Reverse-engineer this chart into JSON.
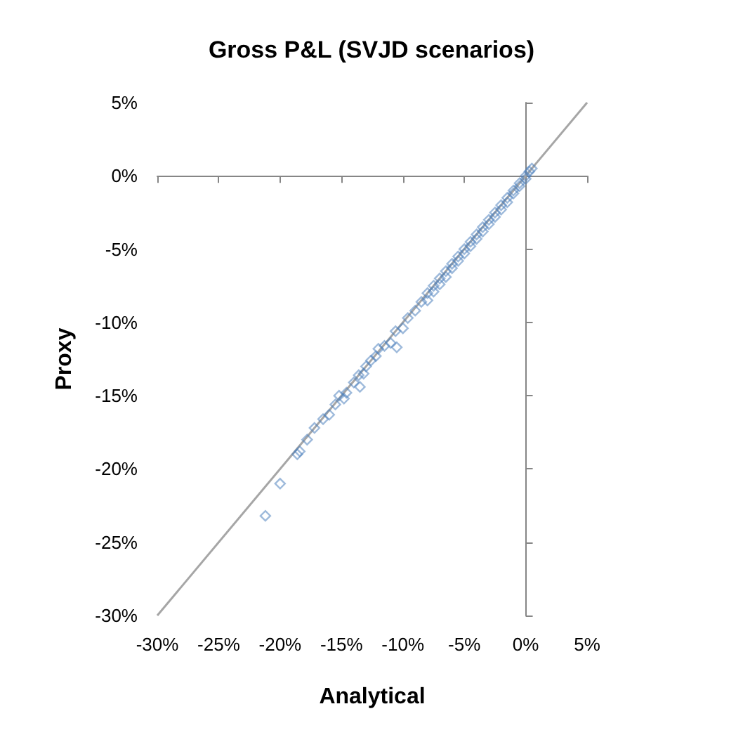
{
  "chart_data": {
    "type": "scatter",
    "title": "Gross P&L (SVJD scenarios)",
    "xlabel": "Analytical",
    "ylabel": "Proxy",
    "marker": "diamond",
    "xlim": [
      -30,
      5
    ],
    "ylim": [
      -30,
      5
    ],
    "xticks": [
      {
        "value": -30,
        "label": "-30%"
      },
      {
        "value": -25,
        "label": "-25%"
      },
      {
        "value": -20,
        "label": "-20%"
      },
      {
        "value": -15,
        "label": "-15%"
      },
      {
        "value": -10,
        "label": "-10%"
      },
      {
        "value": -5,
        "label": "-5%"
      },
      {
        "value": 0,
        "label": "0%"
      },
      {
        "value": 5,
        "label": "5%"
      }
    ],
    "yticks": [
      {
        "value": -30,
        "label": "-30%"
      },
      {
        "value": -25,
        "label": "-25%"
      },
      {
        "value": -20,
        "label": "-20%"
      },
      {
        "value": -15,
        "label": "-15%"
      },
      {
        "value": -10,
        "label": "-10%"
      },
      {
        "value": -5,
        "label": "-5%"
      },
      {
        "value": 0,
        "label": "0%"
      },
      {
        "value": 5,
        "label": "5%"
      }
    ],
    "series": [
      {
        "color": "#4f81bd",
        "x": [
          -21.2,
          -20.0,
          -18.6,
          -18.4,
          -17.8,
          -17.2,
          -16.5,
          -16.0,
          -15.5,
          -15.2,
          -14.8,
          -14.6,
          -14.0,
          -13.6,
          -13.5,
          -13.2,
          -13.0,
          -12.6,
          -12.2,
          -12.0,
          -11.5,
          -11.0,
          -10.6,
          -10.5,
          -10.0,
          -9.6,
          -9.0,
          -8.5,
          -8.0,
          -8.0,
          -7.5,
          -7.5,
          -7.0,
          -7.0,
          -6.5,
          -6.5,
          -6.0,
          -6.0,
          -5.5,
          -5.5,
          -5.0,
          -5.0,
          -4.5,
          -4.5,
          -4.0,
          -4.0,
          -3.5,
          -3.5,
          -3.0,
          -3.0,
          -2.5,
          -2.5,
          -2.0,
          -2.0,
          -1.5,
          -1.5,
          -1.0,
          -1.0,
          -0.5,
          -0.5,
          0.0,
          0.0,
          0.3,
          0.5
        ],
        "values": [
          -23.2,
          -21.0,
          -19.0,
          -18.8,
          -18.0,
          -17.2,
          -16.6,
          -16.3,
          -15.6,
          -15.0,
          -15.2,
          -14.8,
          -14.1,
          -13.6,
          -14.4,
          -13.5,
          -13.0,
          -12.6,
          -12.3,
          -11.8,
          -11.6,
          -11.4,
          -10.6,
          -11.7,
          -10.4,
          -9.7,
          -9.2,
          -8.6,
          -8.0,
          -8.5,
          -7.5,
          -7.9,
          -7.0,
          -7.4,
          -6.5,
          -6.9,
          -6.0,
          -6.3,
          -5.5,
          -5.8,
          -5.0,
          -5.3,
          -4.5,
          -4.8,
          -4.0,
          -4.3,
          -3.5,
          -3.8,
          -3.0,
          -3.3,
          -2.5,
          -2.8,
          -2.0,
          -2.3,
          -1.5,
          -1.8,
          -1.0,
          -1.2,
          -0.5,
          -0.7,
          0.0,
          -0.2,
          0.3,
          0.5
        ]
      },
      {
        "type": "line",
        "color": "#a6a6a6",
        "marker": "none",
        "x": [
          -30,
          5
        ],
        "values": [
          -30,
          5
        ]
      }
    ]
  }
}
